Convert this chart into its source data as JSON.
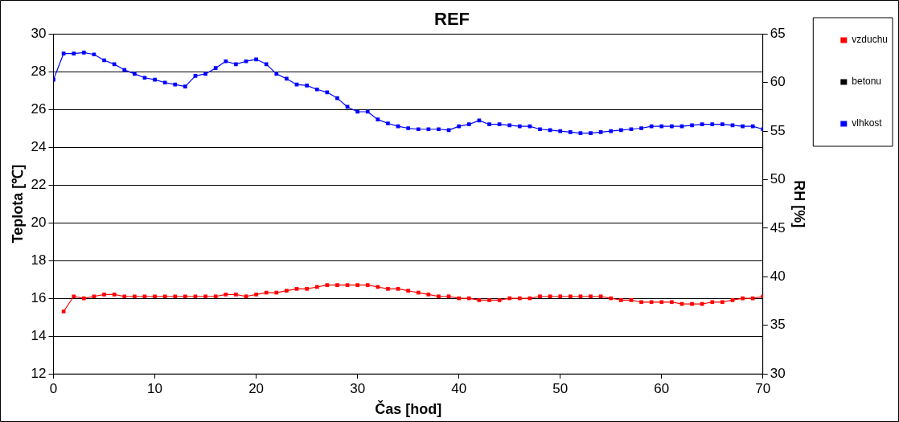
{
  "chart_data": {
    "type": "line",
    "title": "REF",
    "xlabel": "Čas [hod]",
    "ylabel": "Teplota [℃]",
    "y2label": "RH [%]",
    "x": [
      0,
      1,
      2,
      3,
      4,
      5,
      6,
      7,
      8,
      9,
      10,
      11,
      12,
      13,
      14,
      15,
      16,
      17,
      18,
      19,
      20,
      21,
      22,
      23,
      24,
      25,
      26,
      27,
      28,
      29,
      30,
      31,
      32,
      33,
      34,
      35,
      36,
      37,
      38,
      39,
      40,
      41,
      42,
      43,
      44,
      45,
      46,
      47,
      48,
      49,
      50,
      51,
      52,
      53,
      54,
      55,
      56,
      57,
      58,
      59,
      60,
      61,
      62,
      63,
      64,
      65,
      66,
      67,
      68,
      69,
      70
    ],
    "series": [
      {
        "name": "vzduchu",
        "color": "#ff0000",
        "values": [
          null,
          15.3,
          16.1,
          16.0,
          16.1,
          16.2,
          16.2,
          16.1,
          16.1,
          16.1,
          16.1,
          16.1,
          16.1,
          16.1,
          16.1,
          16.1,
          16.1,
          16.2,
          16.2,
          16.1,
          16.2,
          16.3,
          16.3,
          16.4,
          16.5,
          16.5,
          16.6,
          16.7,
          16.7,
          16.7,
          16.7,
          16.7,
          16.6,
          16.5,
          16.5,
          16.4,
          16.3,
          16.2,
          16.1,
          16.1,
          16.0,
          16.0,
          15.9,
          15.9,
          15.9,
          16.0,
          16.0,
          16.0,
          16.1,
          16.1,
          16.1,
          16.1,
          16.1,
          16.1,
          16.1,
          16.0,
          15.9,
          15.9,
          15.8,
          15.8,
          15.8,
          15.8,
          15.7,
          15.7,
          15.7,
          15.8,
          15.8,
          15.9,
          16.0,
          16.0,
          16.1
        ]
      },
      {
        "name": "betonu",
        "color": "#000000",
        "values": [
          null,
          null,
          null,
          null,
          null,
          null,
          null,
          null,
          null,
          null,
          null,
          null,
          null,
          null,
          null,
          null,
          null,
          null,
          null,
          null,
          null,
          null,
          null,
          null,
          null,
          null,
          null,
          null,
          null,
          null,
          null,
          null,
          null,
          null,
          null,
          null,
          null,
          null,
          null,
          null,
          null,
          null,
          null,
          null,
          null,
          null,
          null,
          null,
          null,
          null,
          null,
          null,
          null,
          null,
          null,
          null,
          null,
          null,
          null,
          null,
          null,
          null,
          null,
          null,
          null,
          null,
          null,
          null,
          null,
          null,
          null
        ]
      },
      {
        "name": "vlhkost",
        "color": "#0000ff",
        "axis": "y2",
        "values": [
          60.3,
          63.0,
          63.0,
          63.1,
          62.9,
          62.3,
          61.9,
          61.3,
          60.9,
          60.5,
          60.3,
          60.0,
          59.8,
          59.6,
          60.7,
          60.9,
          61.5,
          62.2,
          61.9,
          62.2,
          62.4,
          61.9,
          60.9,
          60.4,
          59.8,
          59.7,
          59.3,
          59.0,
          58.4,
          57.5,
          57.0,
          57.0,
          56.2,
          55.8,
          55.5,
          55.3,
          55.2,
          55.2,
          55.2,
          55.1,
          55.5,
          55.7,
          56.1,
          55.7,
          55.7,
          55.6,
          55.5,
          55.5,
          55.2,
          55.1,
          55.0,
          54.9,
          54.8,
          54.8,
          54.9,
          55.0,
          55.1,
          55.2,
          55.3,
          55.5,
          55.5,
          55.5,
          55.5,
          55.6,
          55.7,
          55.7,
          55.7,
          55.6,
          55.5,
          55.5,
          55.2
        ]
      }
    ],
    "xlim": [
      0,
      70
    ],
    "xticks": [
      0,
      10,
      20,
      30,
      40,
      50,
      60,
      70
    ],
    "ylim": [
      12,
      30
    ],
    "yticks": [
      12,
      14,
      16,
      18,
      20,
      22,
      24,
      26,
      28,
      30
    ],
    "y2lim": [
      30,
      65
    ],
    "y2ticks": [
      30,
      35,
      40,
      45,
      50,
      55,
      60,
      65
    ],
    "grid": "y",
    "legend": "top right",
    "marker": "square",
    "line_style": "solid"
  }
}
